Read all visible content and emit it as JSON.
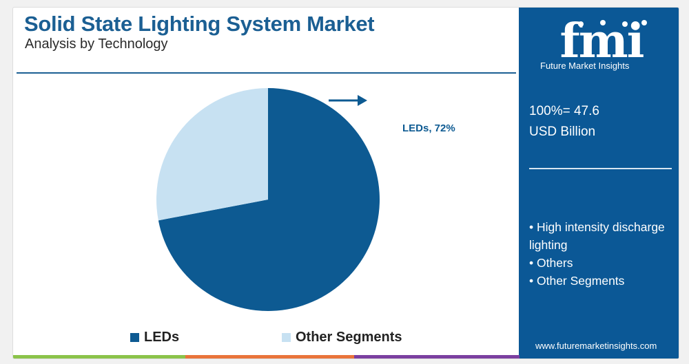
{
  "header": {
    "title": "Solid State Lighting System Market",
    "subtitle": "Analysis by Technology"
  },
  "sidebar": {
    "logo_text": "fmi",
    "logo_caption": "Future Market Insights",
    "total_line1": "100%= 47.6",
    "total_line2": "USD Billion",
    "segments": [
      "• High intensity discharge lighting",
      "• Others",
      "• Other Segments"
    ],
    "url": "www.futuremarketinsights.com"
  },
  "colors": {
    "leds": "#0d5a92",
    "other": "#c7e1f2",
    "brand": "#0b5896",
    "title": "#1b5f93"
  },
  "chart_data": {
    "type": "pie",
    "title": "Solid State Lighting System Market",
    "subtitle": "Analysis by Technology",
    "slices": [
      {
        "name": "LEDs",
        "value": 72,
        "color": "#0d5a92"
      },
      {
        "name": "Other Segments",
        "value": 28,
        "color": "#c7e1f2"
      }
    ],
    "callout": "LEDs, 72%",
    "legend": [
      "LEDs",
      "Other Segments"
    ],
    "legend_position": "bottom"
  }
}
